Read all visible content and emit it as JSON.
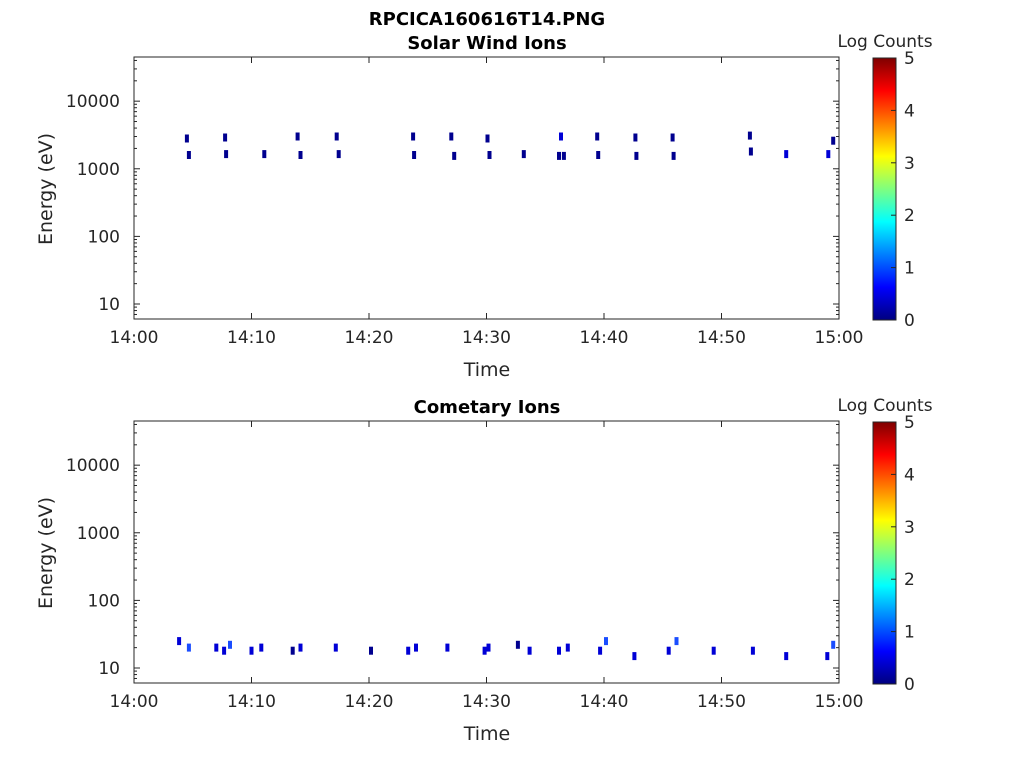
{
  "figure_title": "RPCICA160616T14.PNG",
  "colors": {
    "pixel_dark": "#00008f",
    "pixel_mid": "#0000d6",
    "pixel_light": "#1a4dff",
    "axis": "#262626",
    "colormap": [
      "#00007f",
      "#0000ff",
      "#007fff",
      "#00ffff",
      "#7fff7f",
      "#ffff00",
      "#ff7f00",
      "#ff0000",
      "#7f0000"
    ]
  },
  "chart_data": [
    {
      "type": "heatmap",
      "title": "Solar Wind Ions",
      "xlabel": "Time",
      "ylabel": "Energy (eV)",
      "y_scale": "log",
      "ylim": [
        6,
        45000
      ],
      "x_ticks": [
        "14:00",
        "14:10",
        "14:20",
        "14:30",
        "14:40",
        "14:50",
        "15:00"
      ],
      "y_ticks": [
        "10",
        "100",
        "1000",
        "10000"
      ],
      "colorbar": {
        "label": "Log Counts",
        "range": [
          0,
          5
        ],
        "ticks": [
          "0",
          "1",
          "2",
          "3",
          "4",
          "5"
        ]
      },
      "grid": false,
      "points": [
        {
          "t": "14:04:20",
          "e": 2800,
          "level": 0.3
        },
        {
          "t": "14:04:30",
          "e": 1600,
          "level": 0.3
        },
        {
          "t": "14:07:35",
          "e": 2900,
          "level": 0.3
        },
        {
          "t": "14:07:40",
          "e": 1650,
          "level": 0.3
        },
        {
          "t": "14:10:55",
          "e": 1650,
          "level": 0.3
        },
        {
          "t": "14:13:45",
          "e": 3000,
          "level": 0.3
        },
        {
          "t": "14:14:00",
          "e": 1600,
          "level": 0.3
        },
        {
          "t": "14:17:05",
          "e": 3000,
          "level": 0.3
        },
        {
          "t": "14:17:15",
          "e": 1650,
          "level": 0.3
        },
        {
          "t": "14:23:35",
          "e": 3000,
          "level": 0.3
        },
        {
          "t": "14:23:40",
          "e": 1600,
          "level": 0.3
        },
        {
          "t": "14:26:50",
          "e": 3000,
          "level": 0.3
        },
        {
          "t": "14:27:05",
          "e": 1550,
          "level": 0.3
        },
        {
          "t": "14:29:55",
          "e": 2800,
          "level": 0.3
        },
        {
          "t": "14:30:05",
          "e": 1600,
          "level": 0.3
        },
        {
          "t": "14:33:00",
          "e": 1650,
          "level": 0.3
        },
        {
          "t": "14:36:10",
          "e": 3000,
          "level": 0.4
        },
        {
          "t": "14:36:00",
          "e": 1550,
          "level": 0.3
        },
        {
          "t": "14:36:25",
          "e": 1550,
          "level": 0.3
        },
        {
          "t": "14:39:15",
          "e": 3000,
          "level": 0.3
        },
        {
          "t": "14:39:20",
          "e": 1600,
          "level": 0.3
        },
        {
          "t": "14:42:30",
          "e": 2900,
          "level": 0.3
        },
        {
          "t": "14:42:35",
          "e": 1550,
          "level": 0.3
        },
        {
          "t": "14:45:40",
          "e": 2900,
          "level": 0.3
        },
        {
          "t": "14:45:45",
          "e": 1550,
          "level": 0.3
        },
        {
          "t": "14:52:15",
          "e": 3100,
          "level": 0.3
        },
        {
          "t": "14:52:20",
          "e": 1800,
          "level": 0.3
        },
        {
          "t": "14:55:20",
          "e": 1650,
          "level": 0.4
        },
        {
          "t": "14:58:55",
          "e": 1650,
          "level": 0.4
        },
        {
          "t": "14:59:20",
          "e": 2600,
          "level": 0.3
        }
      ]
    },
    {
      "type": "heatmap",
      "title": "Cometary Ions",
      "xlabel": "Time",
      "ylabel": "Energy (eV)",
      "y_scale": "log",
      "ylim": [
        6,
        45000
      ],
      "x_ticks": [
        "14:00",
        "14:10",
        "14:20",
        "14:30",
        "14:40",
        "14:50",
        "15:00"
      ],
      "y_ticks": [
        "10",
        "100",
        "1000",
        "10000"
      ],
      "colorbar": {
        "label": "Log Counts",
        "range": [
          0,
          5
        ],
        "ticks": [
          "0",
          "1",
          "2",
          "3",
          "4",
          "5"
        ]
      },
      "grid": false,
      "points": [
        {
          "t": "14:03:40",
          "e": 25,
          "level": 0.6
        },
        {
          "t": "14:04:30",
          "e": 20,
          "level": 0.8
        },
        {
          "t": "14:06:50",
          "e": 20,
          "level": 0.6
        },
        {
          "t": "14:07:30",
          "e": 18,
          "level": 0.4
        },
        {
          "t": "14:08:00",
          "e": 22,
          "level": 0.8
        },
        {
          "t": "14:09:50",
          "e": 18,
          "level": 0.6
        },
        {
          "t": "14:10:40",
          "e": 20,
          "level": 0.5
        },
        {
          "t": "14:13:20",
          "e": 18,
          "level": 0.3
        },
        {
          "t": "14:14:00",
          "e": 20,
          "level": 0.5
        },
        {
          "t": "14:17:00",
          "e": 20,
          "level": 0.4
        },
        {
          "t": "14:20:00",
          "e": 18,
          "level": 0.3
        },
        {
          "t": "14:23:10",
          "e": 18,
          "level": 0.5
        },
        {
          "t": "14:23:50",
          "e": 20,
          "level": 0.4
        },
        {
          "t": "14:26:30",
          "e": 20,
          "level": 0.4
        },
        {
          "t": "14:29:40",
          "e": 18,
          "level": 0.4
        },
        {
          "t": "14:30:00",
          "e": 20,
          "level": 0.5
        },
        {
          "t": "14:32:30",
          "e": 22,
          "level": 0.3
        },
        {
          "t": "14:33:30",
          "e": 18,
          "level": 0.4
        },
        {
          "t": "14:36:00",
          "e": 18,
          "level": 0.4
        },
        {
          "t": "14:36:45",
          "e": 20,
          "level": 0.5
        },
        {
          "t": "14:39:30",
          "e": 18,
          "level": 0.5
        },
        {
          "t": "14:40:00",
          "e": 25,
          "level": 0.7
        },
        {
          "t": "14:42:25",
          "e": 15,
          "level": 0.5
        },
        {
          "t": "14:45:20",
          "e": 18,
          "level": 0.5
        },
        {
          "t": "14:46:00",
          "e": 25,
          "level": 0.8
        },
        {
          "t": "14:49:10",
          "e": 18,
          "level": 0.6
        },
        {
          "t": "14:52:30",
          "e": 18,
          "level": 0.6
        },
        {
          "t": "14:55:20",
          "e": 15,
          "level": 0.4
        },
        {
          "t": "14:58:50",
          "e": 15,
          "level": 0.6
        },
        {
          "t": "14:59:20",
          "e": 22,
          "level": 0.8
        }
      ]
    }
  ]
}
